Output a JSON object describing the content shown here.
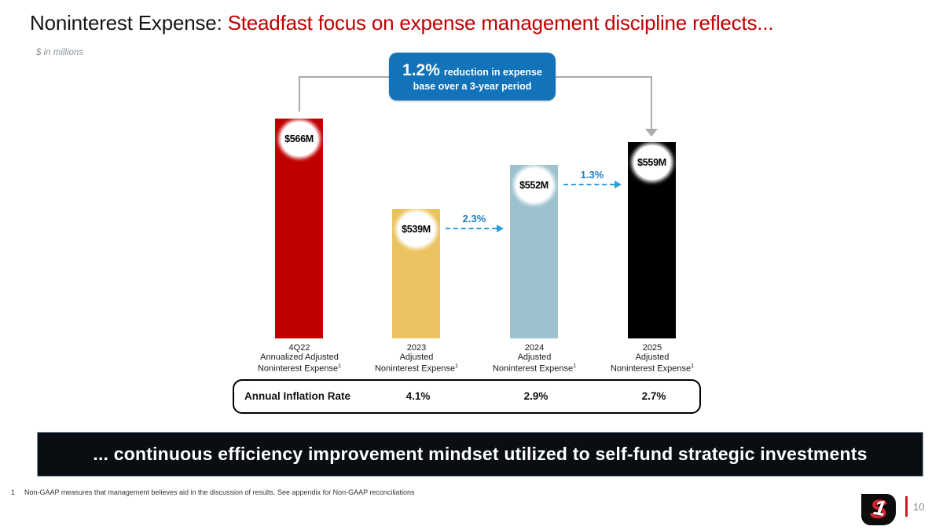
{
  "title": {
    "black": "Noninterest Expense: ",
    "red": "Steadfast focus on expense management discipline reflects..."
  },
  "units_note": "$ in millions",
  "callout": {
    "pct": "1.2%",
    "line1": "reduction in expense",
    "line2": "base over a 3-year period"
  },
  "chart_data": {
    "type": "bar",
    "title": "",
    "categories": [
      "4Q22 Annualized Adjusted Noninterest Expense",
      "2023 Adjusted Noninterest Expense",
      "2024 Adjusted Noninterest Expense",
      "2025 Adjusted Noninterest Expense"
    ],
    "category_lines": [
      [
        "4Q22",
        "Annualized Adjusted",
        "Noninterest Expense"
      ],
      [
        "2023",
        "Adjusted",
        "Noninterest Expense"
      ],
      [
        "2024",
        "Adjusted",
        "Noninterest Expense"
      ],
      [
        "2025",
        "Adjusted",
        "Noninterest Expense"
      ]
    ],
    "footnote_sup": "1",
    "values": [
      566,
      539,
      552,
      559
    ],
    "bar_labels": [
      "$566M",
      "$539M",
      "$552M",
      "$559M"
    ],
    "bar_colors": [
      "#C00000",
      "#EAC360",
      "#9CC2CE",
      "#000000"
    ],
    "ylim": [
      500,
      570
    ],
    "grid": false,
    "legend": false,
    "change_arrows": [
      {
        "label": "2.3%",
        "from": "2023",
        "to": "2024",
        "from_index": 1,
        "to_index": 2
      },
      {
        "label": "1.3%",
        "from": "2024",
        "to": "2025",
        "from_index": 2,
        "to_index": 3
      }
    ],
    "bracket_note": {
      "label": "1.2% reduction in expense base over a 3-year period",
      "from": "4Q22",
      "to": "2025"
    }
  },
  "inflation": {
    "row_label": "Annual Inflation Rate",
    "values": [
      "4.1%",
      "2.9%",
      "2.7%"
    ]
  },
  "banner": {
    "text": "... continuous efficiency improvement mindset utilized to self-fund strategic investments"
  },
  "footnote": {
    "marker": "1",
    "text": "Non-GAAP measures that management believes aid in the discussion of results. See appendix for Non-GAAP reconciliations"
  },
  "logo": {
    "letter_s": "S",
    "letter_one": "1"
  },
  "page_number": "10",
  "colors": {
    "title_red": "#C00000",
    "callout_blue": "#1272BA",
    "arrow_blue": "#2E9FDB",
    "arrow_label_blue": "#1F7EC5",
    "connector_gray": "#ABABAB",
    "banner_bg": "#0a0e13"
  }
}
